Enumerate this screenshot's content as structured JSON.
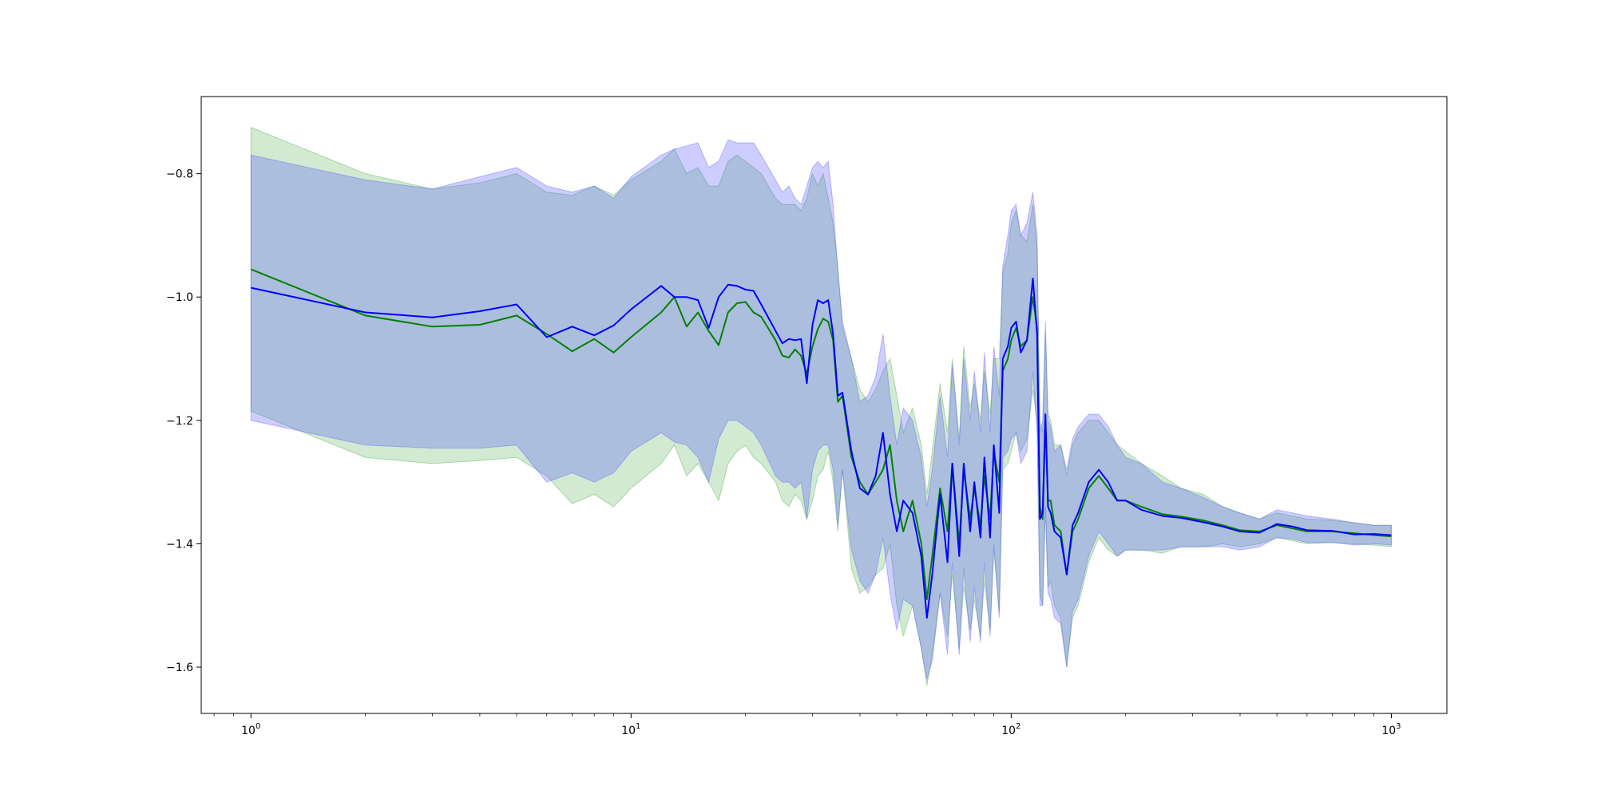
{
  "chart_data": {
    "type": "line",
    "title": "",
    "xlabel": "",
    "ylabel": "",
    "xscale": "log",
    "xlim": [
      0.74,
      1400
    ],
    "ylim": [
      -1.675,
      -0.675
    ],
    "grid": false,
    "legend": "none",
    "x_ticks": [
      {
        "value": 1,
        "base": "10",
        "exp": "0"
      },
      {
        "value": 10,
        "base": "10",
        "exp": "1"
      },
      {
        "value": 100,
        "base": "10",
        "exp": "2"
      },
      {
        "value": 1000,
        "base": "10",
        "exp": "3"
      }
    ],
    "y_ticks": [
      {
        "value": -0.8,
        "label": "−0.8"
      },
      {
        "value": -1.0,
        "label": "−1.0"
      },
      {
        "value": -1.2,
        "label": "−1.2"
      },
      {
        "value": -1.4,
        "label": "−1.4"
      },
      {
        "value": -1.6,
        "label": "−1.6"
      }
    ],
    "series": [
      {
        "color": "#008000",
        "band_color": "#2ca02c",
        "band_opacity": 0.22,
        "x": [
          1,
          2,
          3,
          4,
          5,
          6,
          7,
          8,
          9,
          10,
          12,
          13,
          14,
          15,
          16,
          17,
          18,
          19,
          20,
          21,
          22,
          24,
          25,
          26,
          27,
          28,
          29,
          30,
          31,
          32,
          33,
          34,
          35,
          36,
          38,
          40,
          42,
          44,
          46,
          48,
          50,
          52,
          55,
          58,
          60,
          62,
          65,
          68,
          70,
          73,
          75,
          78,
          80,
          83,
          85,
          88,
          90,
          93,
          95,
          98,
          100,
          103,
          106,
          110,
          114,
          117,
          119,
          121,
          123,
          125,
          127,
          130,
          135,
          140,
          145,
          150,
          160,
          170,
          180,
          190,
          200,
          220,
          250,
          280,
          320,
          360,
          400,
          450,
          500,
          550,
          600,
          700,
          800,
          900,
          1000
        ],
        "mean": [
          -0.955,
          -1.03,
          -1.048,
          -1.045,
          -1.03,
          -1.06,
          -1.088,
          -1.068,
          -1.09,
          -1.065,
          -1.025,
          -1.0,
          -1.048,
          -1.025,
          -1.055,
          -1.078,
          -1.025,
          -1.01,
          -1.008,
          -1.025,
          -1.032,
          -1.07,
          -1.095,
          -1.098,
          -1.085,
          -1.095,
          -1.125,
          -1.08,
          -1.052,
          -1.035,
          -1.04,
          -1.07,
          -1.17,
          -1.16,
          -1.26,
          -1.3,
          -1.32,
          -1.3,
          -1.28,
          -1.24,
          -1.33,
          -1.38,
          -1.33,
          -1.4,
          -1.49,
          -1.42,
          -1.31,
          -1.38,
          -1.27,
          -1.4,
          -1.28,
          -1.36,
          -1.31,
          -1.37,
          -1.29,
          -1.36,
          -1.25,
          -1.3,
          -1.12,
          -1.1,
          -1.07,
          -1.05,
          -1.08,
          -1.07,
          -1.0,
          -1.05,
          -1.34,
          -1.36,
          -1.2,
          -1.33,
          -1.33,
          -1.37,
          -1.38,
          -1.45,
          -1.38,
          -1.36,
          -1.31,
          -1.29,
          -1.31,
          -1.33,
          -1.33,
          -1.34,
          -1.352,
          -1.356,
          -1.362,
          -1.37,
          -1.378,
          -1.38,
          -1.37,
          -1.375,
          -1.38,
          -1.38,
          -1.383,
          -1.386,
          -1.388
        ],
        "upper": [
          -0.725,
          -0.8,
          -0.825,
          -0.815,
          -0.8,
          -0.83,
          -0.835,
          -0.82,
          -0.835,
          -0.81,
          -0.78,
          -0.76,
          -0.8,
          -0.79,
          -0.82,
          -0.82,
          -0.78,
          -0.77,
          -0.78,
          -0.79,
          -0.8,
          -0.84,
          -0.85,
          -0.85,
          -0.85,
          -0.86,
          -0.84,
          -0.8,
          -0.82,
          -0.8,
          -0.84,
          -0.88,
          -0.95,
          -1.05,
          -1.1,
          -1.15,
          -1.17,
          -1.15,
          -1.12,
          -1.1,
          -1.16,
          -1.22,
          -1.18,
          -1.24,
          -1.32,
          -1.25,
          -1.14,
          -1.22,
          -1.1,
          -1.23,
          -1.08,
          -1.18,
          -1.14,
          -1.2,
          -1.12,
          -1.19,
          -1.1,
          -1.1,
          -0.96,
          -0.93,
          -0.88,
          -0.86,
          -0.9,
          -0.91,
          -0.85,
          -0.92,
          -1.2,
          -1.22,
          -1.06,
          -1.19,
          -1.2,
          -1.24,
          -1.24,
          -1.29,
          -1.24,
          -1.22,
          -1.2,
          -1.2,
          -1.22,
          -1.24,
          -1.25,
          -1.27,
          -1.29,
          -1.31,
          -1.32,
          -1.34,
          -1.35,
          -1.36,
          -1.35,
          -1.355,
          -1.36,
          -1.362,
          -1.366,
          -1.37,
          -1.37
        ],
        "lower": [
          -1.185,
          -1.26,
          -1.27,
          -1.265,
          -1.26,
          -1.29,
          -1.335,
          -1.32,
          -1.34,
          -1.31,
          -1.27,
          -1.24,
          -1.29,
          -1.27,
          -1.3,
          -1.33,
          -1.27,
          -1.25,
          -1.24,
          -1.26,
          -1.27,
          -1.3,
          -1.33,
          -1.34,
          -1.32,
          -1.33,
          -1.36,
          -1.33,
          -1.29,
          -1.28,
          -1.25,
          -1.3,
          -1.38,
          -1.28,
          -1.44,
          -1.48,
          -1.47,
          -1.45,
          -1.44,
          -1.4,
          -1.5,
          -1.55,
          -1.5,
          -1.57,
          -1.63,
          -1.58,
          -1.48,
          -1.55,
          -1.45,
          -1.57,
          -1.47,
          -1.54,
          -1.49,
          -1.55,
          -1.46,
          -1.54,
          -1.41,
          -1.51,
          -1.28,
          -1.27,
          -1.25,
          -1.22,
          -1.25,
          -1.23,
          -1.15,
          -1.2,
          -1.48,
          -1.5,
          -1.34,
          -1.47,
          -1.46,
          -1.5,
          -1.52,
          -1.6,
          -1.52,
          -1.5,
          -1.43,
          -1.39,
          -1.41,
          -1.42,
          -1.41,
          -1.41,
          -1.415,
          -1.405,
          -1.405,
          -1.4,
          -1.405,
          -1.4,
          -1.39,
          -1.395,
          -1.4,
          -1.398,
          -1.4,
          -1.402,
          -1.405
        ]
      },
      {
        "color": "#0000ff",
        "band_color": "#4c4cff",
        "band_opacity": 0.28,
        "x": [
          1,
          2,
          3,
          4,
          5,
          6,
          7,
          8,
          9,
          10,
          12,
          13,
          14,
          15,
          16,
          17,
          18,
          19,
          20,
          21,
          22,
          24,
          25,
          26,
          27,
          28,
          29,
          30,
          31,
          32,
          33,
          34,
          35,
          36,
          38,
          40,
          42,
          44,
          46,
          48,
          50,
          52,
          55,
          58,
          60,
          62,
          65,
          68,
          70,
          73,
          75,
          78,
          80,
          83,
          85,
          88,
          90,
          93,
          95,
          98,
          100,
          103,
          106,
          110,
          114,
          117,
          119,
          121,
          123,
          125,
          127,
          130,
          135,
          140,
          145,
          150,
          160,
          170,
          180,
          190,
          200,
          220,
          250,
          280,
          320,
          360,
          400,
          450,
          500,
          550,
          600,
          700,
          800,
          900,
          1000
        ],
        "mean": [
          -0.985,
          -1.025,
          -1.033,
          -1.023,
          -1.012,
          -1.065,
          -1.048,
          -1.062,
          -1.046,
          -1.02,
          -0.982,
          -1.0,
          -1.0,
          -1.005,
          -1.05,
          -1.0,
          -0.98,
          -0.982,
          -0.988,
          -0.99,
          -1.012,
          -1.055,
          -1.075,
          -1.068,
          -1.07,
          -1.068,
          -1.14,
          -1.045,
          -1.005,
          -1.01,
          -1.005,
          -1.06,
          -1.16,
          -1.155,
          -1.25,
          -1.31,
          -1.32,
          -1.29,
          -1.22,
          -1.32,
          -1.38,
          -1.33,
          -1.35,
          -1.42,
          -1.52,
          -1.45,
          -1.32,
          -1.43,
          -1.27,
          -1.42,
          -1.27,
          -1.38,
          -1.3,
          -1.39,
          -1.26,
          -1.39,
          -1.24,
          -1.35,
          -1.1,
          -1.08,
          -1.05,
          -1.04,
          -1.09,
          -1.07,
          -0.97,
          -1.06,
          -1.36,
          -1.35,
          -1.19,
          -1.34,
          -1.35,
          -1.38,
          -1.39,
          -1.45,
          -1.37,
          -1.35,
          -1.3,
          -1.28,
          -1.3,
          -1.33,
          -1.33,
          -1.345,
          -1.355,
          -1.358,
          -1.365,
          -1.372,
          -1.38,
          -1.382,
          -1.368,
          -1.372,
          -1.378,
          -1.379,
          -1.385,
          -1.384,
          -1.386
        ],
        "upper": [
          -0.77,
          -0.81,
          -0.825,
          -0.805,
          -0.79,
          -0.82,
          -0.83,
          -0.82,
          -0.84,
          -0.805,
          -0.77,
          -0.76,
          -0.755,
          -0.75,
          -0.79,
          -0.78,
          -0.745,
          -0.75,
          -0.75,
          -0.75,
          -0.77,
          -0.81,
          -0.83,
          -0.82,
          -0.84,
          -0.85,
          -0.82,
          -0.79,
          -0.78,
          -0.79,
          -0.78,
          -0.85,
          -0.96,
          -1.04,
          -1.1,
          -1.17,
          -1.16,
          -1.13,
          -1.06,
          -1.16,
          -1.24,
          -1.18,
          -1.2,
          -1.26,
          -1.34,
          -1.28,
          -1.16,
          -1.26,
          -1.11,
          -1.24,
          -1.1,
          -1.2,
          -1.12,
          -1.22,
          -1.09,
          -1.22,
          -1.08,
          -1.16,
          -0.95,
          -0.9,
          -0.86,
          -0.85,
          -0.9,
          -0.88,
          -0.83,
          -0.9,
          -1.22,
          -1.2,
          -1.04,
          -1.2,
          -1.21,
          -1.25,
          -1.24,
          -1.28,
          -1.23,
          -1.21,
          -1.19,
          -1.19,
          -1.21,
          -1.24,
          -1.26,
          -1.27,
          -1.3,
          -1.31,
          -1.325,
          -1.34,
          -1.35,
          -1.36,
          -1.345,
          -1.35,
          -1.355,
          -1.36,
          -1.366,
          -1.37,
          -1.37
        ],
        "lower": [
          -1.2,
          -1.24,
          -1.245,
          -1.245,
          -1.24,
          -1.3,
          -1.285,
          -1.3,
          -1.285,
          -1.25,
          -1.22,
          -1.235,
          -1.24,
          -1.26,
          -1.3,
          -1.23,
          -1.2,
          -1.2,
          -1.21,
          -1.22,
          -1.24,
          -1.29,
          -1.3,
          -1.3,
          -1.31,
          -1.3,
          -1.36,
          -1.28,
          -1.25,
          -1.24,
          -1.24,
          -1.28,
          -1.37,
          -1.28,
          -1.41,
          -1.46,
          -1.48,
          -1.45,
          -1.39,
          -1.48,
          -1.54,
          -1.49,
          -1.5,
          -1.57,
          -1.62,
          -1.59,
          -1.48,
          -1.58,
          -1.43,
          -1.58,
          -1.44,
          -1.56,
          -1.47,
          -1.56,
          -1.43,
          -1.55,
          -1.4,
          -1.52,
          -1.26,
          -1.25,
          -1.23,
          -1.22,
          -1.27,
          -1.25,
          -1.12,
          -1.22,
          -1.5,
          -1.5,
          -1.34,
          -1.48,
          -1.49,
          -1.52,
          -1.53,
          -1.6,
          -1.51,
          -1.49,
          -1.42,
          -1.38,
          -1.4,
          -1.42,
          -1.41,
          -1.41,
          -1.41,
          -1.405,
          -1.405,
          -1.405,
          -1.41,
          -1.405,
          -1.39,
          -1.392,
          -1.398,
          -1.398,
          -1.402,
          -1.4,
          -1.402
        ]
      }
    ]
  }
}
